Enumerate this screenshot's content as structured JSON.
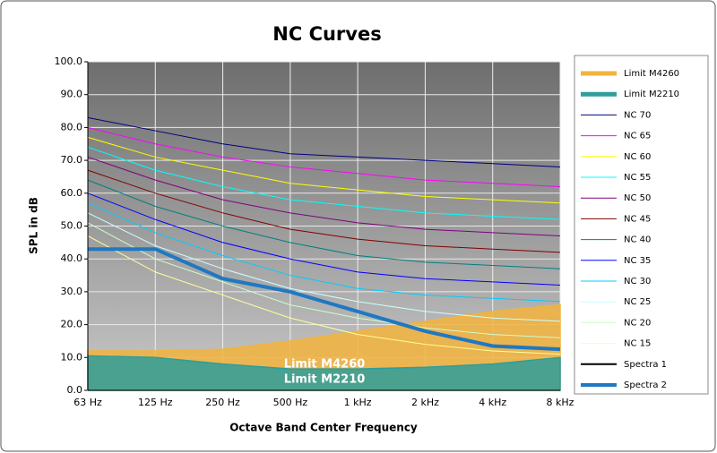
{
  "chart_data": {
    "type": "line",
    "title": "NC Curves",
    "ylabel": "SPL in dB",
    "xlabel": "Octave Band Center Frequency",
    "categories": [
      "63 Hz",
      "125 Hz",
      "250 Hz",
      "500 Hz",
      "1 kHz",
      "2 kHz",
      "4 kHz",
      "8 kHz"
    ],
    "ylim": [
      0,
      100
    ],
    "yticks": [
      {
        "value": 0,
        "label": "0.0"
      },
      {
        "value": 10,
        "label": "10.0"
      },
      {
        "value": 20,
        "label": "20.0"
      },
      {
        "value": 30,
        "label": "30.0"
      },
      {
        "value": 40,
        "label": "40.0"
      },
      {
        "value": 50,
        "label": "50.0"
      },
      {
        "value": 60,
        "label": "60.0"
      },
      {
        "value": 70,
        "label": "70.0"
      },
      {
        "value": 80,
        "label": "80.0"
      },
      {
        "value": 90,
        "label": "90.0"
      },
      {
        "value": 100,
        "label": "100.0"
      }
    ],
    "grid": true,
    "annotations": [
      "Limit M4260",
      "Limit M2210"
    ],
    "series": [
      {
        "name": "Limit M4260",
        "type": "area",
        "color": "#f2b33d",
        "values": [
          12,
          12,
          12.5,
          15,
          18,
          21,
          24,
          26
        ]
      },
      {
        "name": "Limit M2210",
        "type": "area",
        "color": "#2e9e9a",
        "values": [
          10.5,
          10,
          8,
          6.5,
          6.5,
          7,
          8,
          10
        ]
      },
      {
        "name": "NC 70",
        "color": "#000080",
        "values": [
          83,
          79,
          75,
          72,
          71,
          70,
          69,
          68
        ]
      },
      {
        "name": "NC 65",
        "color": "#ff00ff",
        "values": [
          80,
          75,
          71,
          68,
          66,
          64,
          63,
          62
        ]
      },
      {
        "name": "NC 60",
        "color": "#ffff00",
        "values": [
          77,
          71,
          67,
          63,
          61,
          59,
          58,
          57
        ]
      },
      {
        "name": "NC 55",
        "color": "#00ffff",
        "values": [
          74,
          67,
          62,
          58,
          56,
          54,
          53,
          52
        ]
      },
      {
        "name": "NC 50",
        "color": "#800080",
        "values": [
          71,
          64,
          58,
          54,
          51,
          49,
          48,
          47
        ]
      },
      {
        "name": "NC 45",
        "color": "#800000",
        "values": [
          67,
          60,
          54,
          49,
          46,
          44,
          43,
          42
        ]
      },
      {
        "name": "NC 40",
        "color": "#008080",
        "values": [
          64,
          56,
          50,
          45,
          41,
          39,
          38,
          37
        ]
      },
      {
        "name": "NC 35",
        "color": "#0000ff",
        "values": [
          60,
          52,
          45,
          40,
          36,
          34,
          33,
          32
        ]
      },
      {
        "name": "NC 30",
        "color": "#00ccff",
        "values": [
          57,
          48,
          41,
          35,
          31,
          29,
          28,
          27
        ]
      },
      {
        "name": "NC 25",
        "color": "#ccffff",
        "values": [
          54,
          44,
          37,
          31,
          27,
          24,
          22,
          21
        ]
      },
      {
        "name": "NC 20",
        "color": "#ccffcc",
        "values": [
          51,
          40,
          33,
          26,
          22,
          19,
          17,
          16
        ]
      },
      {
        "name": "NC 15",
        "color": "#ffff99",
        "values": [
          47,
          36,
          29,
          22,
          17,
          14,
          12,
          11
        ]
      },
      {
        "name": "Spectra 1",
        "color": "#000000",
        "values": [
          null,
          null,
          null,
          null,
          null,
          null,
          null,
          null
        ]
      },
      {
        "name": "Spectra 2",
        "color": "#1f78c1",
        "width": 4,
        "values": [
          43,
          43,
          34,
          30,
          24,
          18,
          13.5,
          12.5
        ]
      }
    ]
  }
}
